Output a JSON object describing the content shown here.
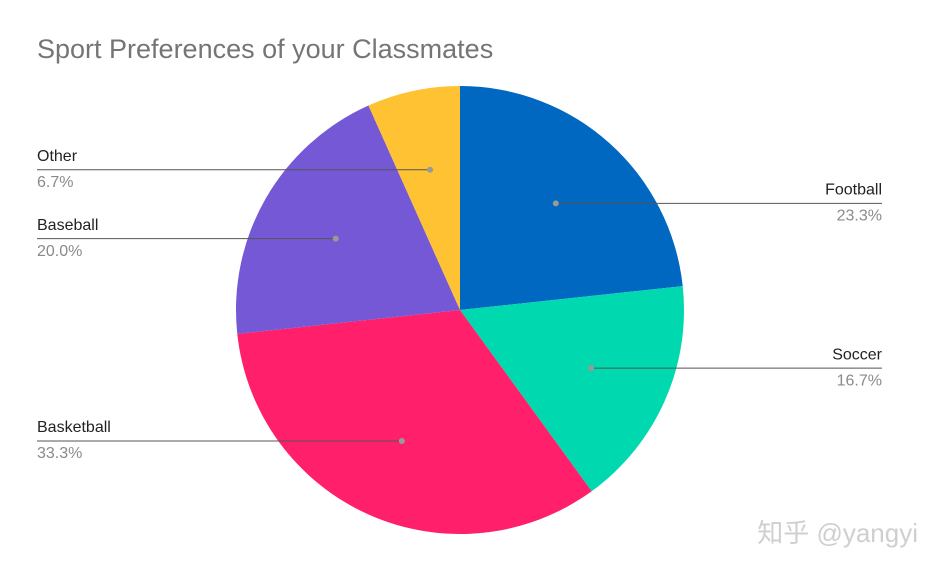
{
  "chart_data": {
    "type": "pie",
    "title": "Sport Preferences of your Classmates",
    "categories": [
      "Football",
      "Soccer",
      "Basketball",
      "Baseball",
      "Other"
    ],
    "values": [
      23.3,
      16.7,
      33.3,
      20.0,
      6.7
    ],
    "value_labels": [
      "23.3%",
      "16.7%",
      "33.3%",
      "20.0%",
      "6.7%"
    ],
    "colors": [
      "#0068c0",
      "#00d9b0",
      "#ff1f6a",
      "#7558d6",
      "#ffc233"
    ],
    "watermark": "知乎 @yangyi"
  }
}
